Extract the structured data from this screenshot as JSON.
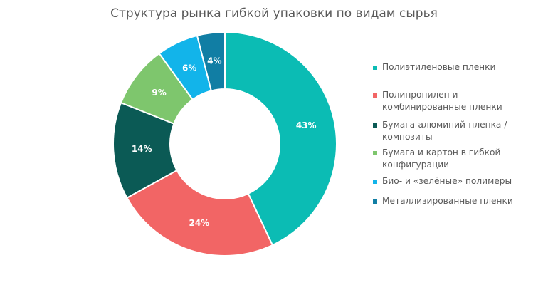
{
  "chart_data": {
    "type": "pie",
    "title": "Структура рынка гибкой упаковки по видам сырья",
    "legend_position": "right",
    "categories": [
      "Полиэтиленовые пленки",
      "Полипропилен и комбинированные пленки",
      "Бумага-алюминий-пленка / композиты",
      "Бумага и картон в гибкой конфигурации",
      "Био- и «зелёные» полимеры",
      "Металлизированные пленки"
    ],
    "values": [
      43,
      24,
      14,
      9,
      6,
      4
    ],
    "data_labels": [
      "43%",
      "24%",
      "14%",
      "9%",
      "6%",
      "4%"
    ],
    "colors": [
      "#0bbcb4",
      "#f26565",
      "#0b5a55",
      "#7ec66d",
      "#12b4ea",
      "#117ea4"
    ]
  }
}
